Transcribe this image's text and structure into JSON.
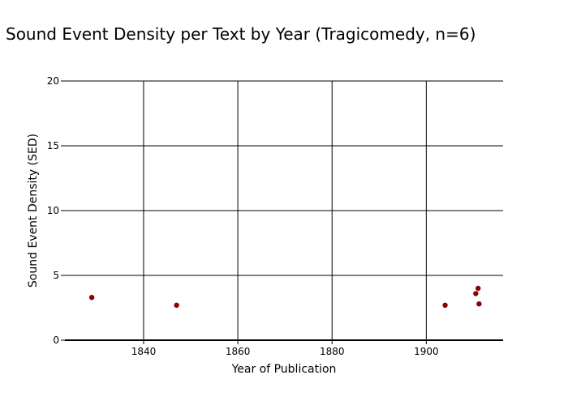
{
  "chart_data": {
    "type": "scatter",
    "title": "Sound Event Density per Text by Year (Tragicomedy, n=6)",
    "xlabel": "Year of Publication",
    "ylabel": "Sound Event Density (SED)",
    "xlim": [
      1823.3,
      1916.3
    ],
    "ylim": [
      0,
      20
    ],
    "x_ticks": [
      1840,
      1860,
      1880,
      1900
    ],
    "y_ticks": [
      0,
      5,
      10,
      15,
      20
    ],
    "grid": true,
    "marker_color": "#8b0000",
    "series": [
      {
        "x": [
          1829,
          1847,
          1904,
          1910.5,
          1911,
          1911.2
        ],
        "y": [
          3.3,
          2.7,
          2.7,
          3.6,
          4.0,
          2.8
        ]
      }
    ]
  }
}
